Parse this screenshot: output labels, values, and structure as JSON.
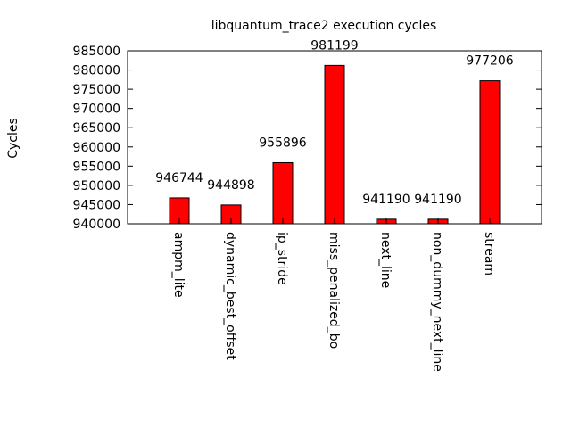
{
  "chart_data": {
    "type": "bar",
    "title": "libquantum_trace2 execution cycles",
    "xlabel": "",
    "ylabel": "Cycles",
    "categories": [
      "ampm_lite",
      "dynamic_best_offset",
      "ip_stride",
      "miss_penalized_bo",
      "next_line",
      "non_dummy_next_line",
      "stream"
    ],
    "values": [
      946744,
      944898,
      955896,
      981199,
      941190,
      941190,
      977206
    ],
    "data_labels": [
      "946744",
      "944898",
      "955896",
      "981199",
      "941190",
      "941190",
      "977206"
    ],
    "ylim": [
      940000,
      985000
    ],
    "yticks": [
      "940000",
      "945000",
      "950000",
      "955000",
      "960000",
      "965000",
      "970000",
      "975000",
      "980000",
      "985000"
    ],
    "bar_color": "#ff0000",
    "grid": false,
    "legend": "none"
  }
}
